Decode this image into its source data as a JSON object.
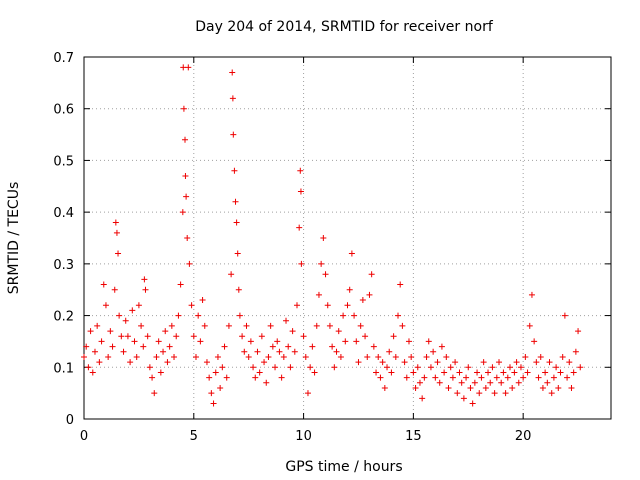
{
  "chart_data": {
    "type": "scatter",
    "title": "Day 204 of 2014, SRMTID for receiver norf",
    "xlabel": "GPS time / hours",
    "ylabel": "SRMTID / TECUs",
    "xlim": [
      0,
      24
    ],
    "ylim": [
      0,
      0.7
    ],
    "x_ticks": [
      0,
      5,
      10,
      15,
      20
    ],
    "x_tick_labels": [
      "0",
      "5",
      "10",
      "15",
      "20"
    ],
    "y_ticks": [
      0,
      0.1,
      0.2,
      0.3,
      0.4,
      0.5,
      0.6,
      0.7
    ],
    "y_tick_labels": [
      "0",
      "0.1",
      "0.2",
      "0.3",
      "0.4",
      "0.5",
      "0.6",
      "0.7"
    ],
    "grid": true,
    "marker": "+",
    "color": "#ee0000",
    "series": [
      {
        "name": "SRMTID",
        "points": [
          [
            0.0,
            0.12
          ],
          [
            0.1,
            0.14
          ],
          [
            0.2,
            0.1
          ],
          [
            0.3,
            0.17
          ],
          [
            0.4,
            0.09
          ],
          [
            0.5,
            0.13
          ],
          [
            0.6,
            0.18
          ],
          [
            0.7,
            0.11
          ],
          [
            0.8,
            0.15
          ],
          [
            0.9,
            0.26
          ],
          [
            1.0,
            0.22
          ],
          [
            1.1,
            0.12
          ],
          [
            1.2,
            0.17
          ],
          [
            1.3,
            0.14
          ],
          [
            1.4,
            0.25
          ],
          [
            1.45,
            0.38
          ],
          [
            1.5,
            0.36
          ],
          [
            1.55,
            0.32
          ],
          [
            1.6,
            0.2
          ],
          [
            1.7,
            0.16
          ],
          [
            1.8,
            0.13
          ],
          [
            1.9,
            0.19
          ],
          [
            2.0,
            0.16
          ],
          [
            2.1,
            0.11
          ],
          [
            2.2,
            0.21
          ],
          [
            2.3,
            0.15
          ],
          [
            2.4,
            0.12
          ],
          [
            2.5,
            0.22
          ],
          [
            2.6,
            0.18
          ],
          [
            2.7,
            0.14
          ],
          [
            2.75,
            0.27
          ],
          [
            2.8,
            0.25
          ],
          [
            2.9,
            0.16
          ],
          [
            3.0,
            0.1
          ],
          [
            3.1,
            0.08
          ],
          [
            3.2,
            0.05
          ],
          [
            3.3,
            0.12
          ],
          [
            3.4,
            0.15
          ],
          [
            3.5,
            0.09
          ],
          [
            3.6,
            0.13
          ],
          [
            3.7,
            0.17
          ],
          [
            3.8,
            0.11
          ],
          [
            3.9,
            0.14
          ],
          [
            4.0,
            0.18
          ],
          [
            4.1,
            0.12
          ],
          [
            4.2,
            0.16
          ],
          [
            4.3,
            0.2
          ],
          [
            4.4,
            0.26
          ],
          [
            4.5,
            0.4
          ],
          [
            4.52,
            0.68
          ],
          [
            4.55,
            0.6
          ],
          [
            4.6,
            0.54
          ],
          [
            4.62,
            0.47
          ],
          [
            4.65,
            0.43
          ],
          [
            4.7,
            0.35
          ],
          [
            4.75,
            0.68
          ],
          [
            4.8,
            0.3
          ],
          [
            4.9,
            0.22
          ],
          [
            5.0,
            0.16
          ],
          [
            5.1,
            0.12
          ],
          [
            5.2,
            0.2
          ],
          [
            5.3,
            0.15
          ],
          [
            5.4,
            0.23
          ],
          [
            5.5,
            0.18
          ],
          [
            5.6,
            0.11
          ],
          [
            5.7,
            0.08
          ],
          [
            5.8,
            0.05
          ],
          [
            5.9,
            0.03
          ],
          [
            6.0,
            0.09
          ],
          [
            6.1,
            0.12
          ],
          [
            6.2,
            0.06
          ],
          [
            6.3,
            0.1
          ],
          [
            6.4,
            0.14
          ],
          [
            6.5,
            0.08
          ],
          [
            6.6,
            0.18
          ],
          [
            6.7,
            0.28
          ],
          [
            6.75,
            0.67
          ],
          [
            6.78,
            0.62
          ],
          [
            6.8,
            0.55
          ],
          [
            6.85,
            0.48
          ],
          [
            6.9,
            0.42
          ],
          [
            6.95,
            0.38
          ],
          [
            7.0,
            0.32
          ],
          [
            7.05,
            0.25
          ],
          [
            7.1,
            0.2
          ],
          [
            7.2,
            0.16
          ],
          [
            7.3,
            0.13
          ],
          [
            7.4,
            0.18
          ],
          [
            7.5,
            0.12
          ],
          [
            7.6,
            0.15
          ],
          [
            7.7,
            0.1
          ],
          [
            7.8,
            0.08
          ],
          [
            7.9,
            0.13
          ],
          [
            8.0,
            0.09
          ],
          [
            8.1,
            0.16
          ],
          [
            8.2,
            0.11
          ],
          [
            8.3,
            0.07
          ],
          [
            8.4,
            0.12
          ],
          [
            8.5,
            0.18
          ],
          [
            8.6,
            0.14
          ],
          [
            8.7,
            0.1
          ],
          [
            8.8,
            0.15
          ],
          [
            8.9,
            0.13
          ],
          [
            9.0,
            0.08
          ],
          [
            9.1,
            0.12
          ],
          [
            9.2,
            0.19
          ],
          [
            9.3,
            0.14
          ],
          [
            9.4,
            0.1
          ],
          [
            9.5,
            0.17
          ],
          [
            9.6,
            0.13
          ],
          [
            9.7,
            0.22
          ],
          [
            9.8,
            0.37
          ],
          [
            9.85,
            0.48
          ],
          [
            9.88,
            0.44
          ],
          [
            9.9,
            0.3
          ],
          [
            10.0,
            0.16
          ],
          [
            10.1,
            0.12
          ],
          [
            10.2,
            0.05
          ],
          [
            10.3,
            0.1
          ],
          [
            10.4,
            0.14
          ],
          [
            10.5,
            0.09
          ],
          [
            10.6,
            0.18
          ],
          [
            10.7,
            0.24
          ],
          [
            10.8,
            0.3
          ],
          [
            10.9,
            0.35
          ],
          [
            11.0,
            0.28
          ],
          [
            11.1,
            0.22
          ],
          [
            11.2,
            0.18
          ],
          [
            11.3,
            0.14
          ],
          [
            11.4,
            0.1
          ],
          [
            11.5,
            0.13
          ],
          [
            11.6,
            0.17
          ],
          [
            11.7,
            0.12
          ],
          [
            11.8,
            0.2
          ],
          [
            11.9,
            0.15
          ],
          [
            12.0,
            0.22
          ],
          [
            12.1,
            0.25
          ],
          [
            12.2,
            0.32
          ],
          [
            12.3,
            0.2
          ],
          [
            12.4,
            0.15
          ],
          [
            12.5,
            0.11
          ],
          [
            12.6,
            0.18
          ],
          [
            12.7,
            0.23
          ],
          [
            12.8,
            0.16
          ],
          [
            12.9,
            0.12
          ],
          [
            13.0,
            0.24
          ],
          [
            13.1,
            0.28
          ],
          [
            13.2,
            0.14
          ],
          [
            13.3,
            0.09
          ],
          [
            13.4,
            0.12
          ],
          [
            13.5,
            0.08
          ],
          [
            13.6,
            0.11
          ],
          [
            13.7,
            0.06
          ],
          [
            13.8,
            0.1
          ],
          [
            13.9,
            0.13
          ],
          [
            14.0,
            0.09
          ],
          [
            14.1,
            0.16
          ],
          [
            14.2,
            0.12
          ],
          [
            14.3,
            0.2
          ],
          [
            14.4,
            0.26
          ],
          [
            14.5,
            0.18
          ],
          [
            14.6,
            0.11
          ],
          [
            14.7,
            0.08
          ],
          [
            14.8,
            0.15
          ],
          [
            14.9,
            0.12
          ],
          [
            15.0,
            0.09
          ],
          [
            15.1,
            0.06
          ],
          [
            15.2,
            0.1
          ],
          [
            15.3,
            0.07
          ],
          [
            15.4,
            0.04
          ],
          [
            15.5,
            0.08
          ],
          [
            15.6,
            0.12
          ],
          [
            15.7,
            0.15
          ],
          [
            15.8,
            0.1
          ],
          [
            15.9,
            0.13
          ],
          [
            16.0,
            0.08
          ],
          [
            16.1,
            0.11
          ],
          [
            16.2,
            0.07
          ],
          [
            16.3,
            0.14
          ],
          [
            16.4,
            0.09
          ],
          [
            16.5,
            0.12
          ],
          [
            16.6,
            0.06
          ],
          [
            16.7,
            0.1
          ],
          [
            16.8,
            0.08
          ],
          [
            16.9,
            0.11
          ],
          [
            17.0,
            0.05
          ],
          [
            17.1,
            0.09
          ],
          [
            17.2,
            0.07
          ],
          [
            17.3,
            0.04
          ],
          [
            17.4,
            0.08
          ],
          [
            17.5,
            0.1
          ],
          [
            17.6,
            0.06
          ],
          [
            17.7,
            0.03
          ],
          [
            17.8,
            0.07
          ],
          [
            17.9,
            0.09
          ],
          [
            18.0,
            0.05
          ],
          [
            18.1,
            0.08
          ],
          [
            18.2,
            0.11
          ],
          [
            18.3,
            0.06
          ],
          [
            18.4,
            0.09
          ],
          [
            18.5,
            0.07
          ],
          [
            18.6,
            0.1
          ],
          [
            18.7,
            0.05
          ],
          [
            18.8,
            0.08
          ],
          [
            18.9,
            0.11
          ],
          [
            19.0,
            0.07
          ],
          [
            19.1,
            0.09
          ],
          [
            19.2,
            0.05
          ],
          [
            19.3,
            0.08
          ],
          [
            19.4,
            0.1
          ],
          [
            19.5,
            0.06
          ],
          [
            19.6,
            0.09
          ],
          [
            19.7,
            0.11
          ],
          [
            19.8,
            0.07
          ],
          [
            19.9,
            0.1
          ],
          [
            20.0,
            0.08
          ],
          [
            20.1,
            0.12
          ],
          [
            20.2,
            0.09
          ],
          [
            20.3,
            0.18
          ],
          [
            20.4,
            0.24
          ],
          [
            20.5,
            0.15
          ],
          [
            20.6,
            0.11
          ],
          [
            20.7,
            0.08
          ],
          [
            20.8,
            0.12
          ],
          [
            20.9,
            0.06
          ],
          [
            21.0,
            0.09
          ],
          [
            21.1,
            0.07
          ],
          [
            21.2,
            0.11
          ],
          [
            21.3,
            0.05
          ],
          [
            21.4,
            0.08
          ],
          [
            21.5,
            0.1
          ],
          [
            21.6,
            0.06
          ],
          [
            21.7,
            0.09
          ],
          [
            21.8,
            0.12
          ],
          [
            21.9,
            0.2
          ],
          [
            22.0,
            0.08
          ],
          [
            22.1,
            0.11
          ],
          [
            22.2,
            0.06
          ],
          [
            22.3,
            0.09
          ],
          [
            22.4,
            0.13
          ],
          [
            22.5,
            0.17
          ],
          [
            22.6,
            0.1
          ]
        ]
      }
    ]
  }
}
